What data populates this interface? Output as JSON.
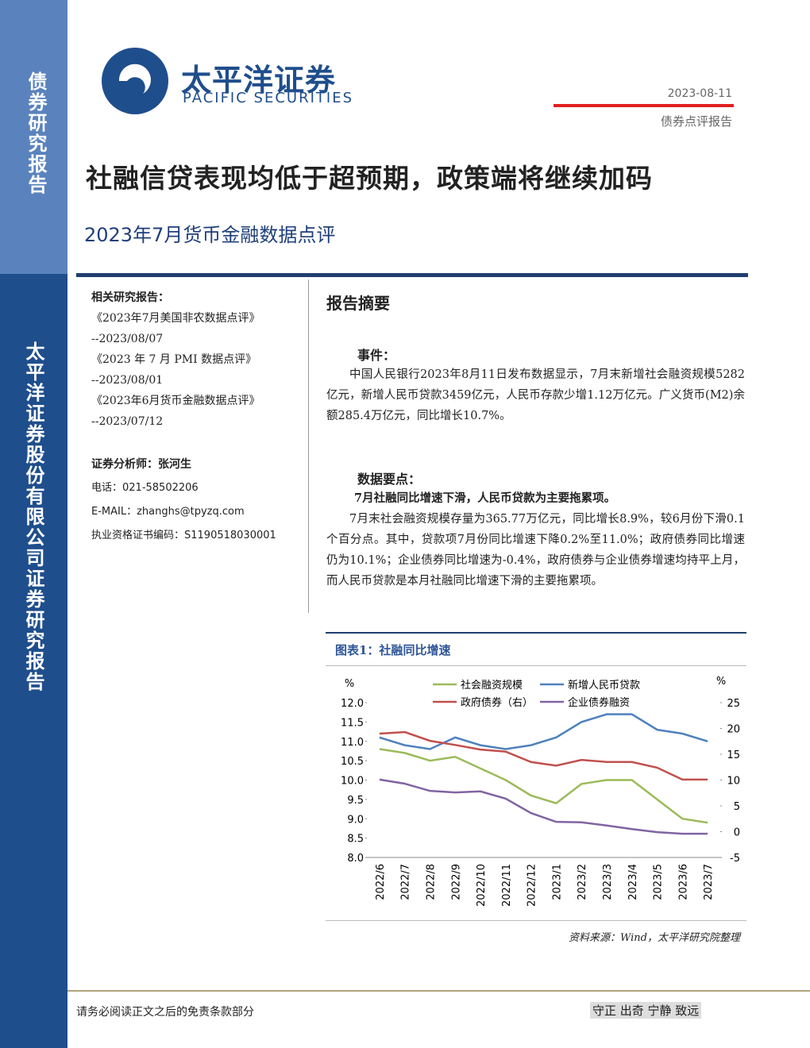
{
  "header": {
    "logo_cn": "太平洋证券",
    "logo_en": "PACIFIC SECURITIES",
    "date": "2023-08-11",
    "report_type": "债券点评报告"
  },
  "sidebar": {
    "top": "债券研究报告",
    "bottom": "太平洋证券股份有限公司证券研究报告"
  },
  "title": "社融信贷表现均低于超预期，政策端将继续加码",
  "subtitle": "2023年7月货币金融数据点评",
  "related": {
    "heading": "相关研究报告：",
    "items": [
      {
        "title": "《2023年7月美国非农数据点评》",
        "date": "--2023/08/07"
      },
      {
        "title": "《2023 年 7 月 PMI 数据点评》",
        "date": "--2023/08/01"
      },
      {
        "title": "《2023年6月货币金融数据点评》",
        "date": "--2023/07/12"
      }
    ]
  },
  "analyst": {
    "heading": "证券分析师：张河生",
    "phone": "电话：021-58502206",
    "email": "E-MAIL：zhanghs@tpyzq.com",
    "license": "执业资格证书编码：S1190518030001"
  },
  "summary": {
    "heading": "报告摘要",
    "event_heading": "事件：",
    "event_text": "中国人民银行2023年8月11日发布数据显示，7月末新增社会融资规模5282亿元，新增人民币贷款3459亿元，人民币存款少增1.12万亿元。广义货币(M2)余额285.4万亿元，同比增长10.7%。",
    "points_heading": "数据要点：",
    "points_bold": "7月社融同比增速下滑，人民币贷款为主要拖累项。",
    "points_text": "7月末社会融资规模存量为365.77万亿元，同比增长8.9%，较6月份下滑0.1个百分点。其中，贷款项7月份同比增速下降0.2%至11.0%；政府债券同比增速仍为10.1%；企业债券同比增速为-0.4%，政府债券与企业债券增速均持平上月，而人民币贷款是本月社融同比增速下滑的主要拖累项。"
  },
  "chart_caption": "图表1：社融同比增速",
  "source": "资料来源：Wind，太平洋研究院整理",
  "chart_data": {
    "type": "line",
    "y_unit": "%",
    "y2_unit": "%",
    "categories": [
      "2022/6",
      "2022/7",
      "2022/8",
      "2022/9",
      "2022/10",
      "2022/11",
      "2022/12",
      "2023/1",
      "2023/2",
      "2023/3",
      "2023/4",
      "2023/5",
      "2023/6",
      "2023/7"
    ],
    "series": [
      {
        "name": "社会融资规模",
        "color": "#9bbb59",
        "values": [
          10.8,
          10.7,
          10.5,
          10.6,
          10.3,
          10.0,
          9.6,
          9.4,
          9.9,
          10.0,
          10.0,
          9.5,
          9.0,
          8.9
        ]
      },
      {
        "name": "新增人民币贷款",
        "color": "#4f81bd",
        "values": [
          11.1,
          10.9,
          10.8,
          11.1,
          10.9,
          10.8,
          10.9,
          11.1,
          11.5,
          11.7,
          11.7,
          11.3,
          11.2,
          11.0
        ]
      },
      {
        "name": "政府债券（右）",
        "color": "#c0504d",
        "axis": "y2",
        "values": [
          19.0,
          19.3,
          17.6,
          16.8,
          15.9,
          15.5,
          13.5,
          12.8,
          13.9,
          13.5,
          13.5,
          12.4,
          10.1,
          10.1
        ]
      },
      {
        "name": "企业债券融资",
        "color": "#8064a2",
        "axis": "y2",
        "values": [
          10.1,
          9.3,
          7.9,
          7.6,
          7.8,
          6.4,
          3.6,
          1.9,
          1.8,
          1.2,
          0.5,
          -0.1,
          -0.4,
          -0.4
        ]
      }
    ],
    "ylim": [
      8,
      12
    ],
    "yticks": [
      {
        "value": 8,
        "label": "8.0"
      },
      {
        "value": 8.5,
        "label": "8.5"
      },
      {
        "value": 9,
        "label": "9.0"
      },
      {
        "value": 9.5,
        "label": "9.5"
      },
      {
        "value": 10,
        "label": "10.0"
      },
      {
        "value": 10.5,
        "label": "10.5"
      },
      {
        "value": 11,
        "label": "11.0"
      },
      {
        "value": 11.5,
        "label": "11.5"
      },
      {
        "value": 12,
        "label": "12.0"
      }
    ],
    "y2lim": [
      -5,
      25
    ],
    "y2ticks": [
      -5,
      0,
      5,
      10,
      15,
      20,
      25
    ]
  },
  "footer": {
    "disclaimer": "请务必阅读正文之后的免责条款部分",
    "motto": "守正 出奇 宁静 致远"
  }
}
